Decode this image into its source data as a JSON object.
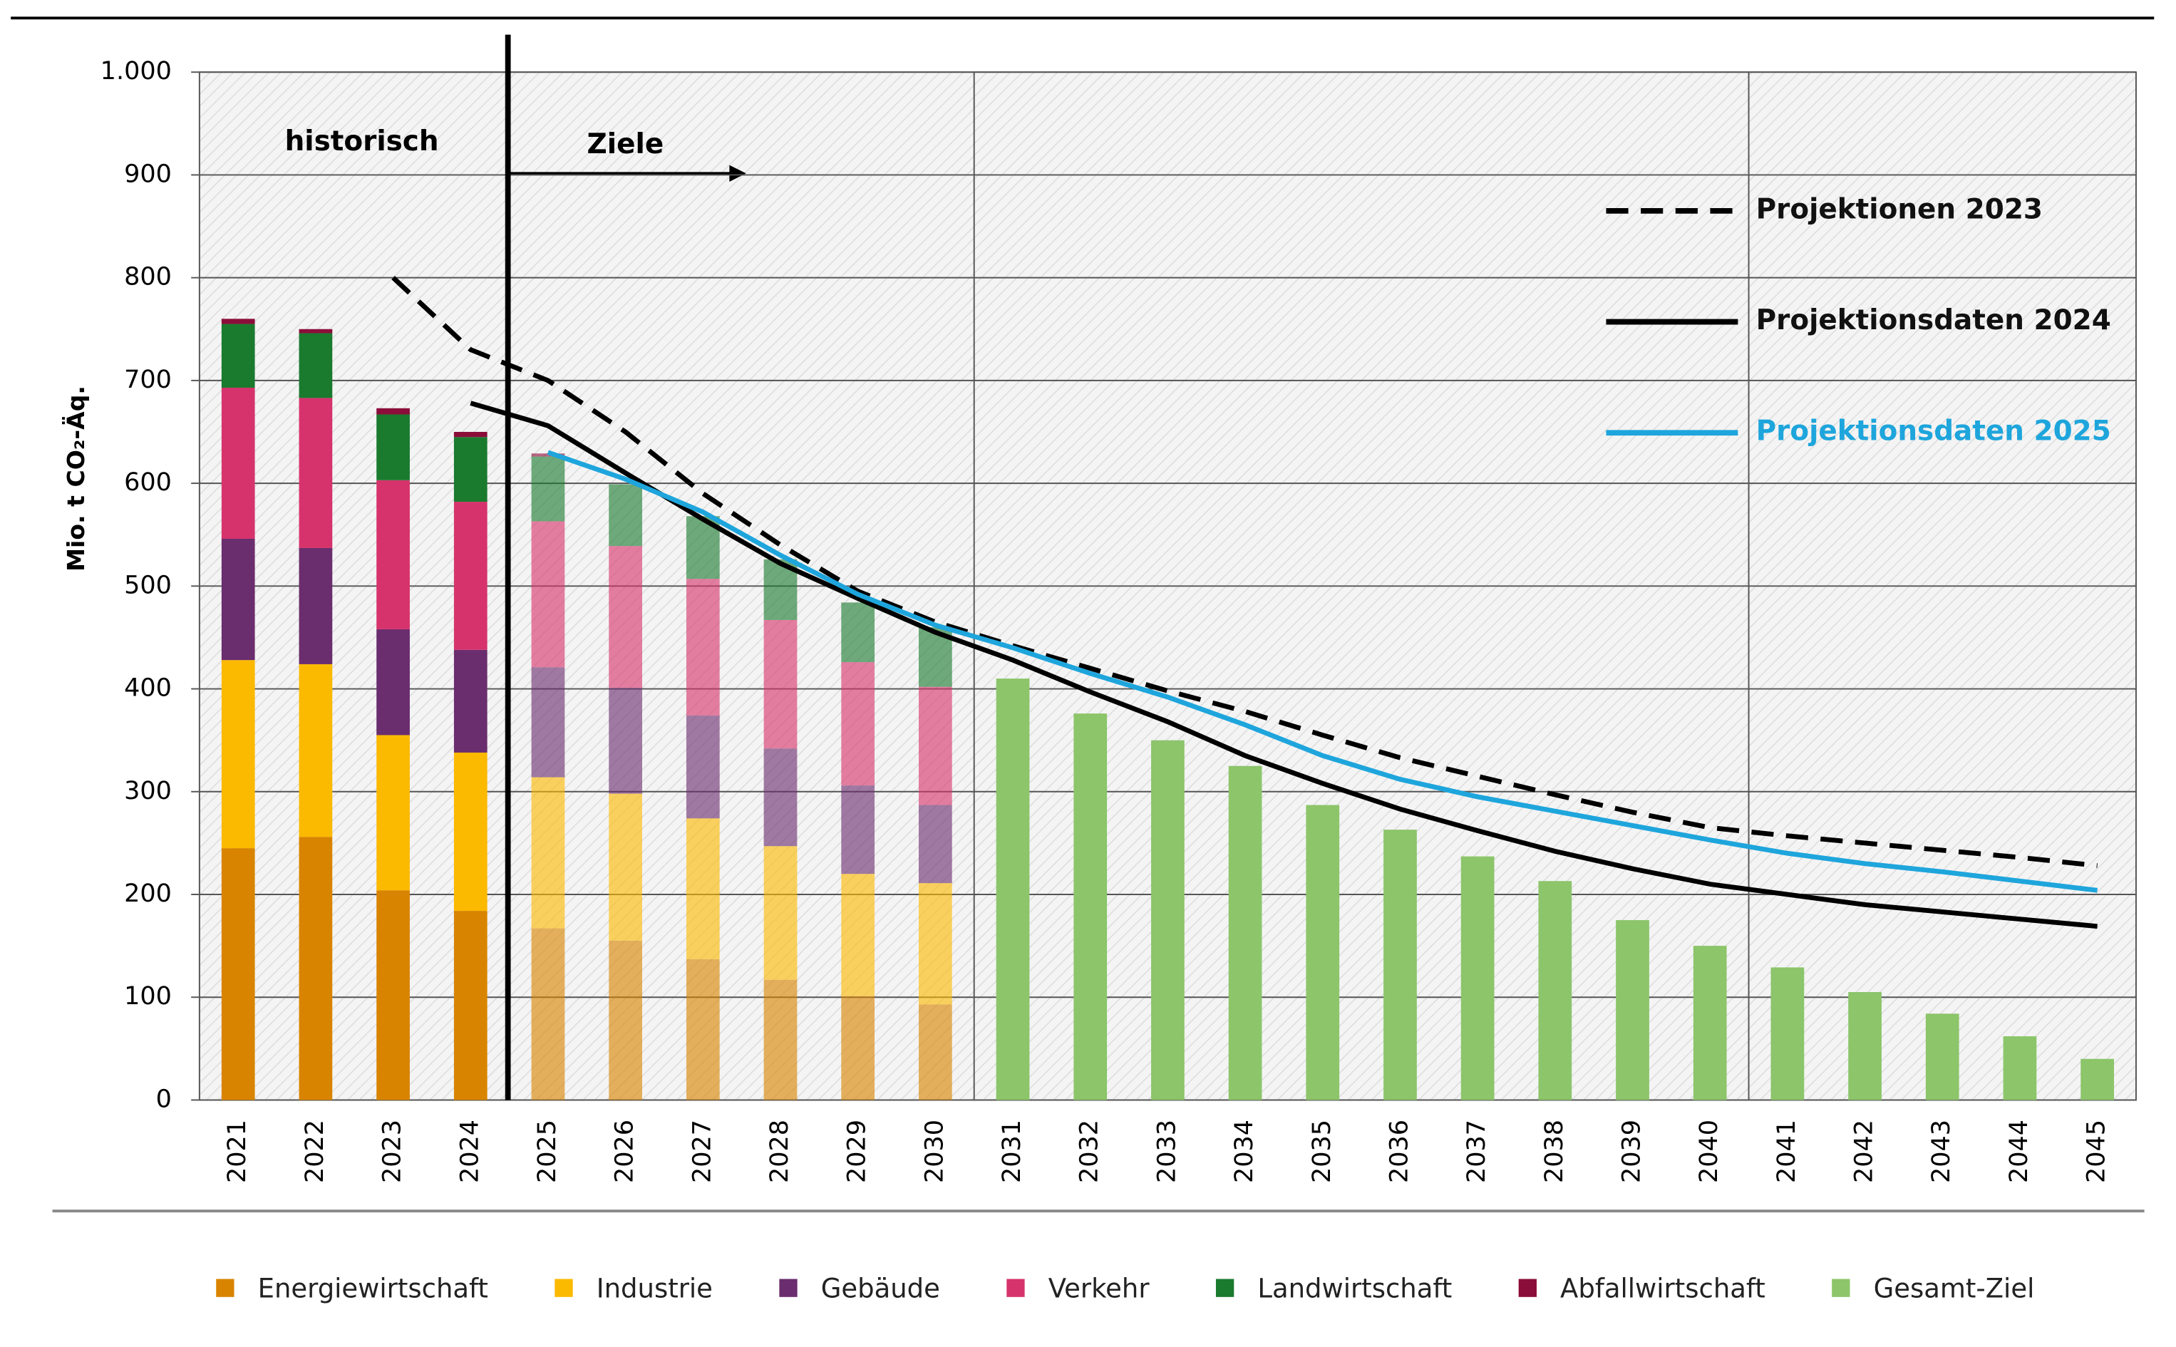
{
  "chart_data": {
    "type": "bar",
    "y_label": "Mio. t CO₂-Äq.",
    "annotations": [
      "historisch",
      "Ziele"
    ],
    "categories": [
      "2021",
      "2022",
      "2023",
      "2024",
      "2025",
      "2026",
      "2027",
      "2028",
      "2029",
      "2030",
      "2031",
      "2032",
      "2033",
      "2034",
      "2035",
      "2036",
      "2037",
      "2038",
      "2039",
      "2040",
      "2041",
      "2042",
      "2043",
      "2044",
      "2045"
    ],
    "ylim": [
      0,
      1000
    ],
    "yticks": [
      0,
      100,
      200,
      300,
      400,
      500,
      600,
      700,
      800,
      900,
      {
        "value": 1000,
        "label": "1.000"
      }
    ],
    "grid": true,
    "series": [
      {
        "name": "Energiewirtschaft",
        "color": "#d98400",
        "values": [
          245,
          256,
          204,
          184,
          167,
          155,
          137,
          117,
          101,
          93,
          null,
          null,
          null,
          null,
          null,
          null,
          null,
          null,
          null,
          null,
          null,
          null,
          null,
          null,
          null
        ]
      },
      {
        "name": "Industrie",
        "color": "#fbb900",
        "values": [
          183,
          168,
          151,
          154,
          147,
          143,
          137,
          130,
          119,
          118,
          null,
          null,
          null,
          null,
          null,
          null,
          null,
          null,
          null,
          null,
          null,
          null,
          null,
          null,
          null
        ]
      },
      {
        "name": "Gebäude",
        "color": "#6a2d6e",
        "values": [
          118,
          113,
          103,
          100,
          107,
          103,
          100,
          95,
          86,
          76,
          null,
          null,
          null,
          null,
          null,
          null,
          null,
          null,
          null,
          null,
          null,
          null,
          null,
          null,
          null
        ]
      },
      {
        "name": "Verkehr",
        "color": "#d6336c",
        "values": [
          147,
          146,
          145,
          144,
          142,
          138,
          133,
          125,
          120,
          115,
          null,
          null,
          null,
          null,
          null,
          null,
          null,
          null,
          null,
          null,
          null,
          null,
          null,
          null,
          null
        ]
      },
      {
        "name": "Landwirtschaft",
        "color": "#1a7a2e",
        "values": [
          62,
          63,
          64,
          63,
          63,
          60,
          61,
          59,
          58,
          58,
          null,
          null,
          null,
          null,
          null,
          null,
          null,
          null,
          null,
          null,
          null,
          null,
          null,
          null,
          null
        ]
      },
      {
        "name": "Abfallwirtschaft",
        "color": "#8b0d3a",
        "values": [
          5,
          4,
          6,
          5,
          3,
          null,
          null,
          null,
          null,
          null,
          null,
          null,
          null,
          null,
          null,
          null,
          null,
          null,
          null,
          null,
          null,
          null,
          null,
          null,
          null
        ]
      },
      {
        "name": "Gesamt-Ziel",
        "color": "#8cc56a",
        "values": [
          null,
          null,
          null,
          null,
          null,
          null,
          null,
          null,
          null,
          null,
          410,
          376,
          350,
          325,
          287,
          263,
          237,
          213,
          175,
          150,
          129,
          105,
          84,
          62,
          40
        ]
      },
      {
        "name": "Projektionen 2023",
        "type": "line",
        "dash": true,
        "color": "#000000",
        "values": [
          null,
          null,
          800,
          730,
          700,
          650,
          590,
          540,
          495,
          465,
          442,
          420,
          398,
          378,
          355,
          333,
          315,
          297,
          280,
          265,
          257,
          250,
          243,
          236,
          228
        ]
      },
      {
        "name": "Projektionsdaten 2024",
        "type": "line",
        "color": "#000000",
        "values": [
          null,
          null,
          null,
          678,
          656,
          610,
          565,
          522,
          488,
          455,
          428,
          397,
          368,
          335,
          308,
          283,
          262,
          242,
          225,
          210,
          200,
          190,
          183,
          176,
          169
        ]
      },
      {
        "name": "Projektionsdaten 2025",
        "type": "line",
        "color": "#1ea5dc",
        "values": [
          null,
          null,
          null,
          null,
          630,
          604,
          572,
          530,
          492,
          462,
          440,
          415,
          392,
          365,
          335,
          312,
          295,
          281,
          267,
          253,
          240,
          230,
          222,
          213,
          204
        ]
      }
    ]
  }
}
